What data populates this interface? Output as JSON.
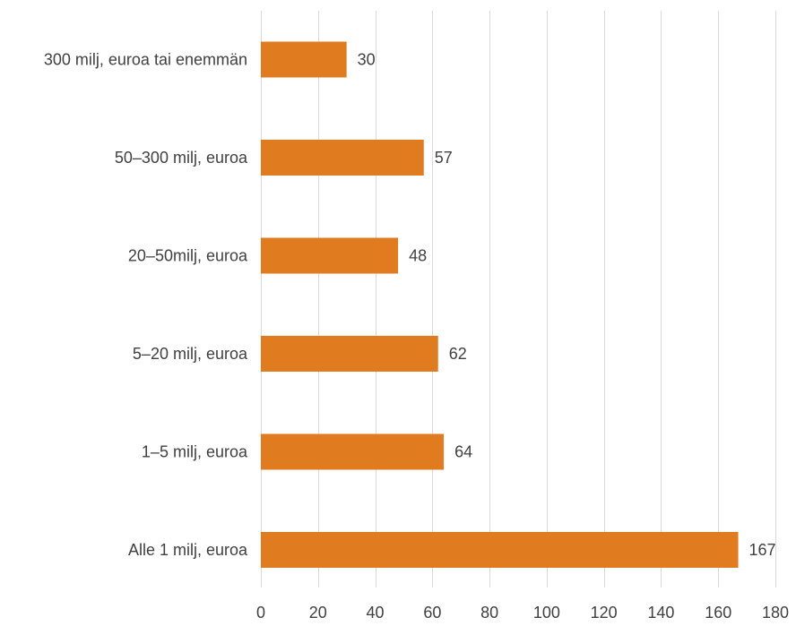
{
  "chart_data": {
    "type": "bar",
    "orientation": "horizontal",
    "categories": [
      "300 milj, euroa tai enemmän",
      "50–300 milj, euroa",
      "20–50milj, euroa",
      "5–20 milj, euroa",
      "1–5 milj, euroa",
      "Alle 1 milj, euroa"
    ],
    "values": [
      30,
      57,
      48,
      62,
      64,
      167
    ],
    "data_labels": [
      "30",
      "57",
      "48",
      "62",
      "64",
      "167"
    ],
    "xlim": [
      0,
      180
    ],
    "xticks": [
      0,
      20,
      40,
      60,
      80,
      100,
      120,
      140,
      160,
      180
    ],
    "xtick_labels": [
      "0",
      "20",
      "40",
      "60",
      "80",
      "100",
      "120",
      "140",
      "160",
      "180"
    ],
    "title": "",
    "xlabel": "",
    "ylabel": "",
    "grid": "vertical",
    "legend": "none",
    "colors": {
      "bar": "#E07B1F",
      "grid": "#D9D9D9",
      "text": "#404040"
    }
  }
}
